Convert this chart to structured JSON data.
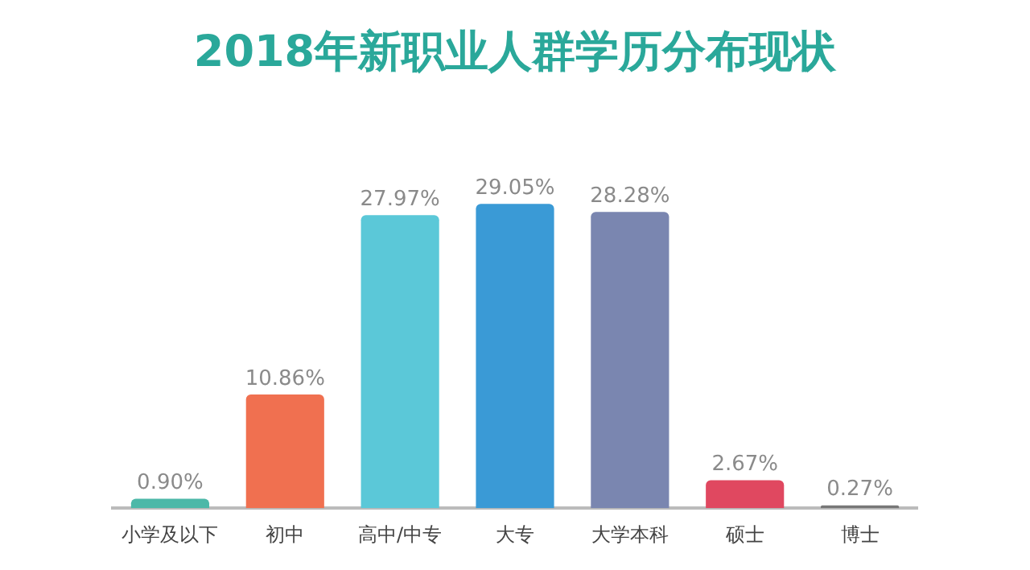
{
  "chart_data": {
    "type": "bar",
    "title": "2018年新职业人群学历分布现状",
    "categories": [
      "小学及以下",
      "初中",
      "高中/中专",
      "大专",
      "大学本科",
      "硕士",
      "博士"
    ],
    "values": [
      0.9,
      10.86,
      27.97,
      29.05,
      28.28,
      2.67,
      0.27
    ],
    "value_labels": [
      "0.90%",
      "10.86%",
      "27.97%",
      "29.05%",
      "28.28%",
      "2.67%",
      "0.27%"
    ],
    "colors": [
      "#4cb8a8",
      "#f07050",
      "#5bc8d8",
      "#3a9ad6",
      "#7a86b0",
      "#e04860",
      "#777777"
    ]
  }
}
